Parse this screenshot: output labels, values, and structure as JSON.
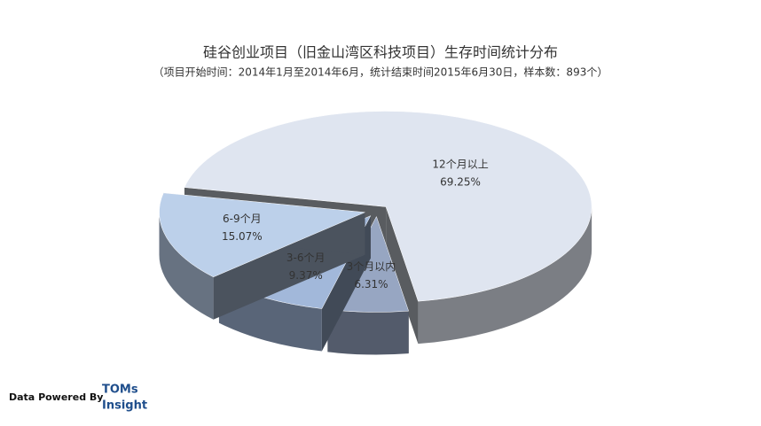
{
  "chart_data": {
    "type": "pie",
    "title": "硅谷创业项目（旧金山湾区科技项目）生存时间统计分布",
    "subtitle": "（项目开始时间：2014年1月至2014年6月，统计结束时间2015年6月30日，样本数：893个）",
    "categories": [
      "12个月以上",
      "3个月以内",
      "3-6个月",
      "6-9个月"
    ],
    "values": [
      69.25,
      6.31,
      9.37,
      15.07
    ],
    "value_labels": [
      "69.25%",
      "6.31%",
      "9.37%",
      "15.07%"
    ],
    "colors": [
      "#dfe5f0",
      "#97a6c2",
      "#a2b8da",
      "#bcd0ea"
    ]
  },
  "footer": {
    "source": "Data Powered By",
    "brand_line1": "TOMs",
    "brand_line2": "Insight"
  }
}
